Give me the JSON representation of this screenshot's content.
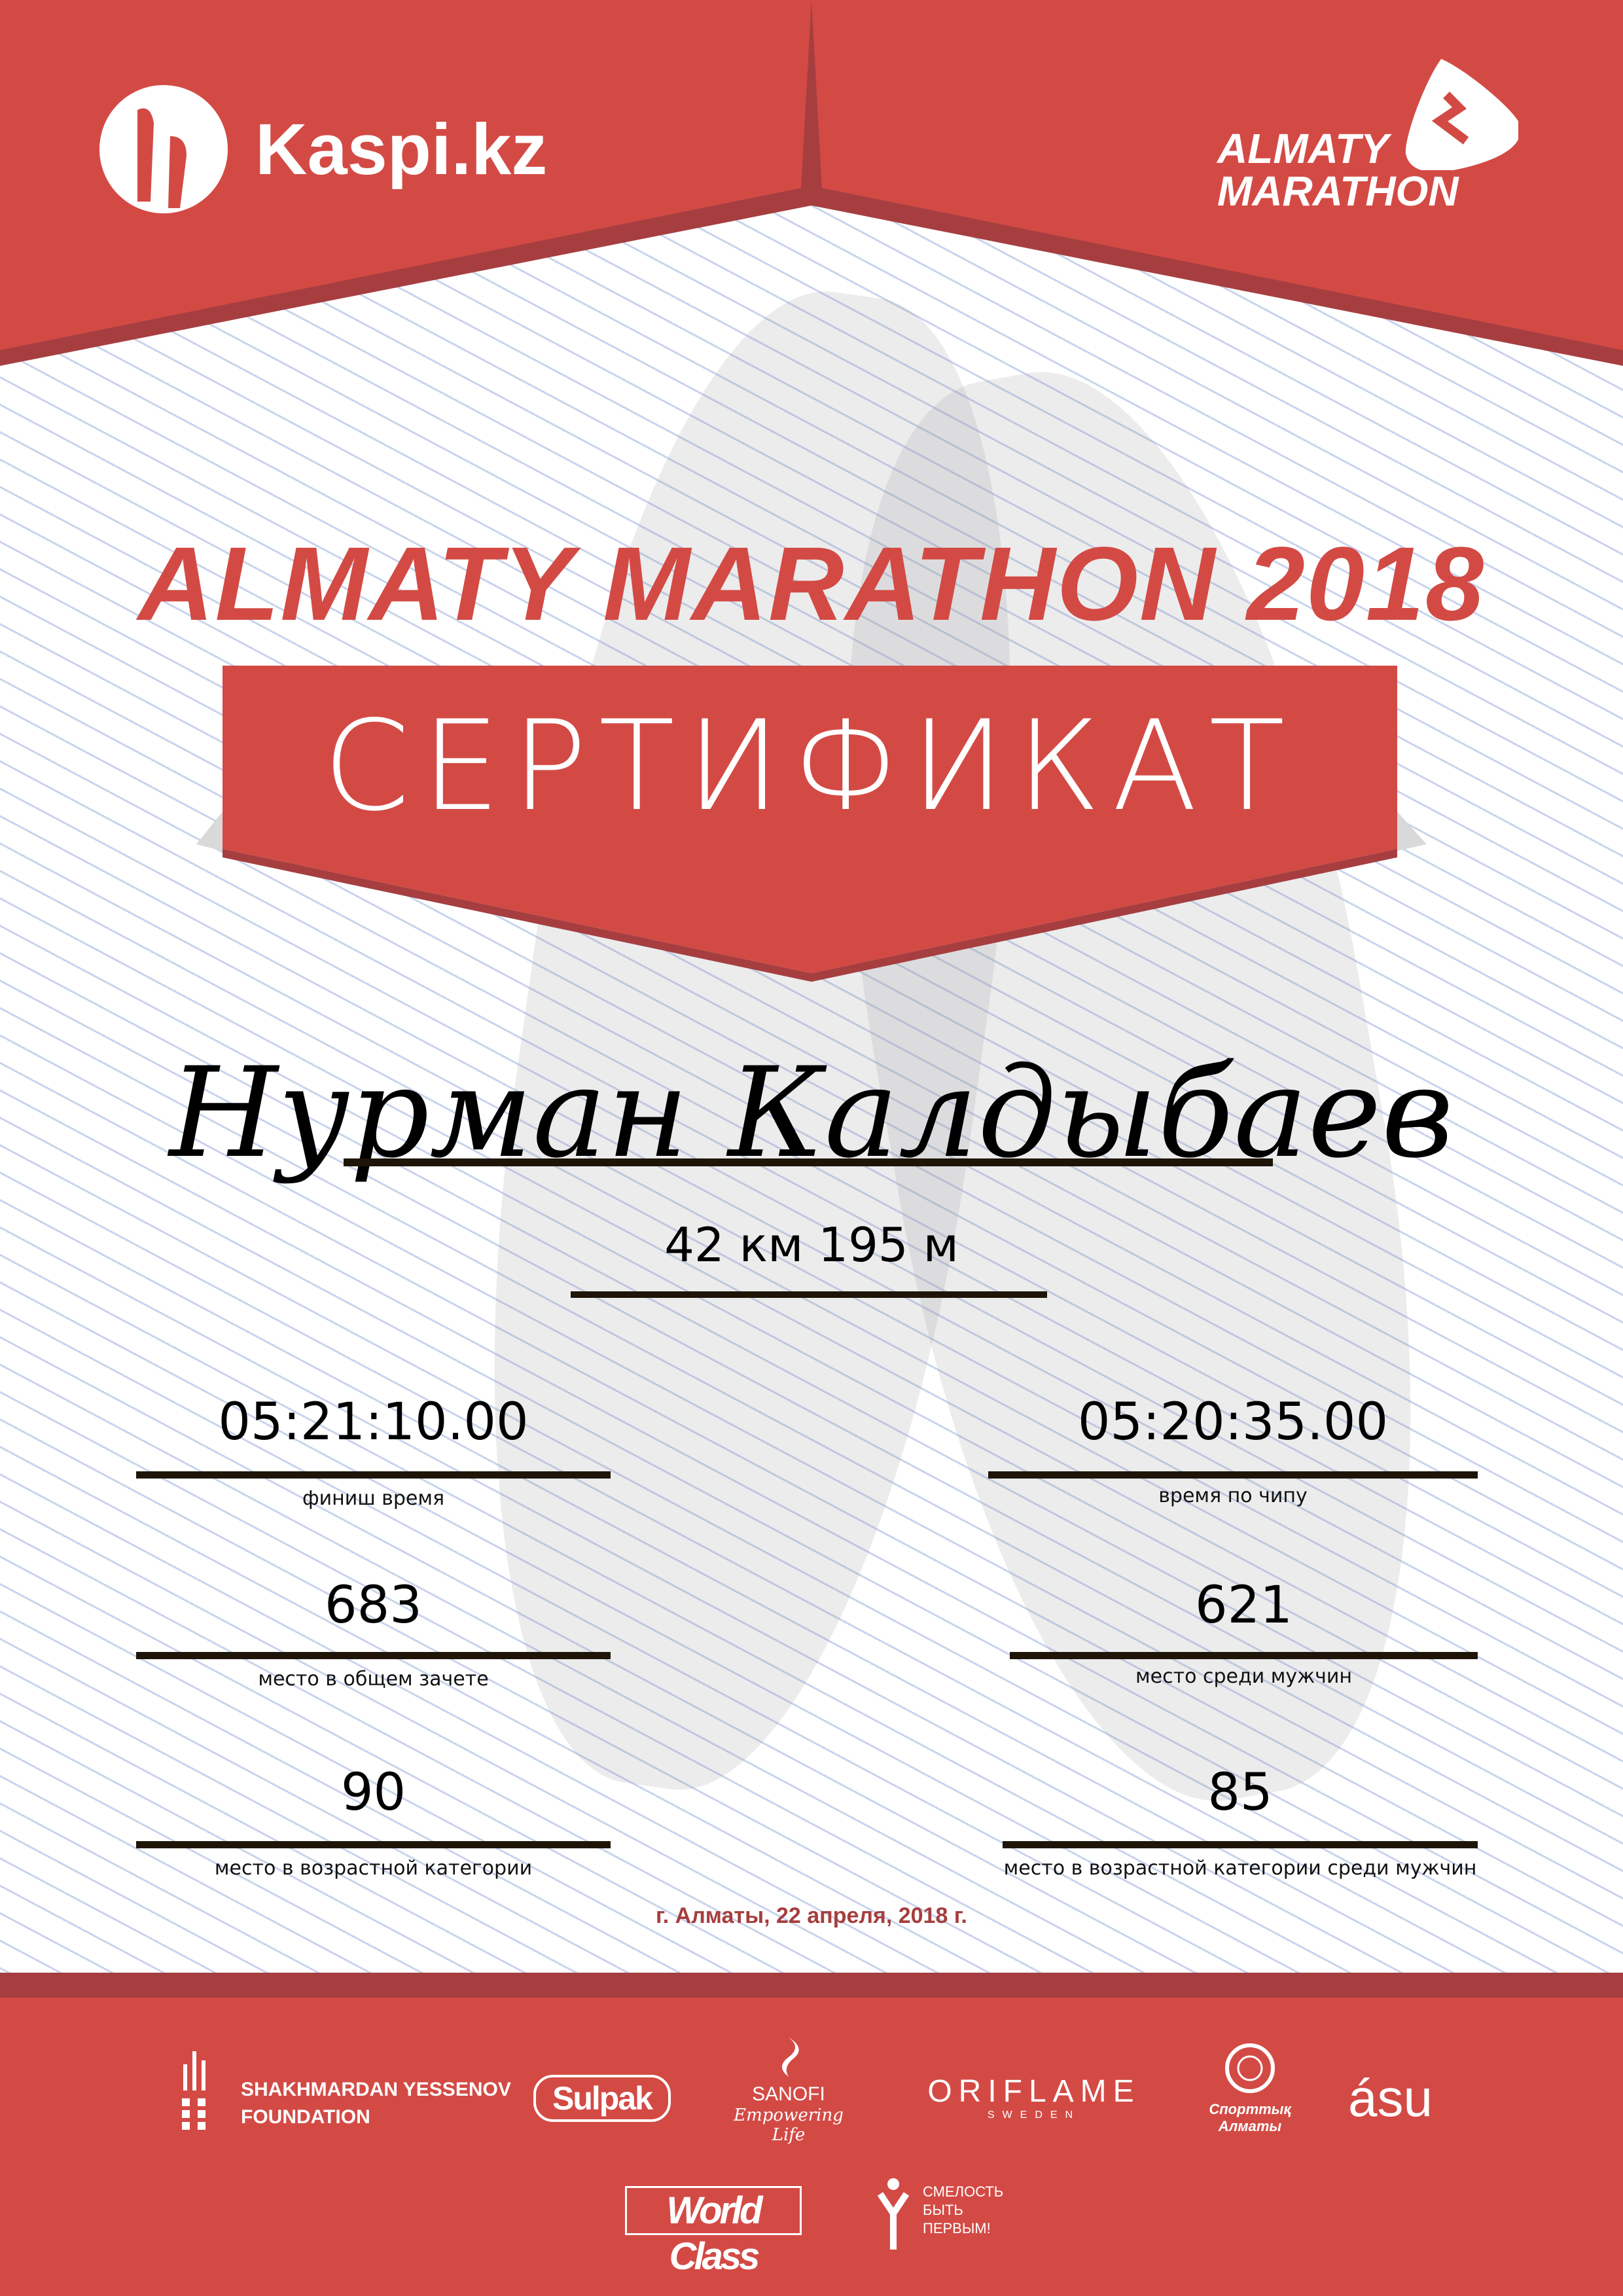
{
  "header": {
    "left_logo": "Kaspi.kz",
    "right_logo": [
      "ALMATY",
      "MARATHON"
    ]
  },
  "title": "ALMATY MARATHON 2018",
  "certificate_label": "СЕРТИФИКАТ",
  "participant": {
    "name": "Нурман Калдыбаев",
    "distance": "42 км 195 м"
  },
  "results": {
    "left": [
      {
        "value": "05:21:10.00",
        "label": "финиш время"
      },
      {
        "value": "683",
        "label": "место в общем зачете"
      },
      {
        "value": "90",
        "label": "место в возрастной категории"
      }
    ],
    "right": [
      {
        "value": "05:20:35.00",
        "label": "время по чипу"
      },
      {
        "value": "621",
        "label": "место среди мужчин"
      },
      {
        "value": "85",
        "label": "место в возрастной категории среди мужчин"
      }
    ]
  },
  "date": "г. Алматы, 22 апреля, 2018 г.",
  "sponsors": {
    "yessenov": [
      "SHAKHMARDAN YESSENOV",
      "FOUNDATION"
    ],
    "sulpak": "Sulpak",
    "sanofi": [
      "SANOFI",
      "Empowering Life"
    ],
    "oriflame": [
      "ORIFLAME",
      "SWEDEN"
    ],
    "sport_almaty": [
      "Спорттық",
      "Алматы"
    ],
    "asu": "ásu",
    "worldclass": "World Class",
    "smelost": [
      "СМЕЛОСТЬ",
      "БЫТЬ",
      "ПЕРВЫМ!"
    ]
  },
  "colors": {
    "primary_red": "#d34a45",
    "dark_red": "#a63e40",
    "text": "#000000"
  }
}
